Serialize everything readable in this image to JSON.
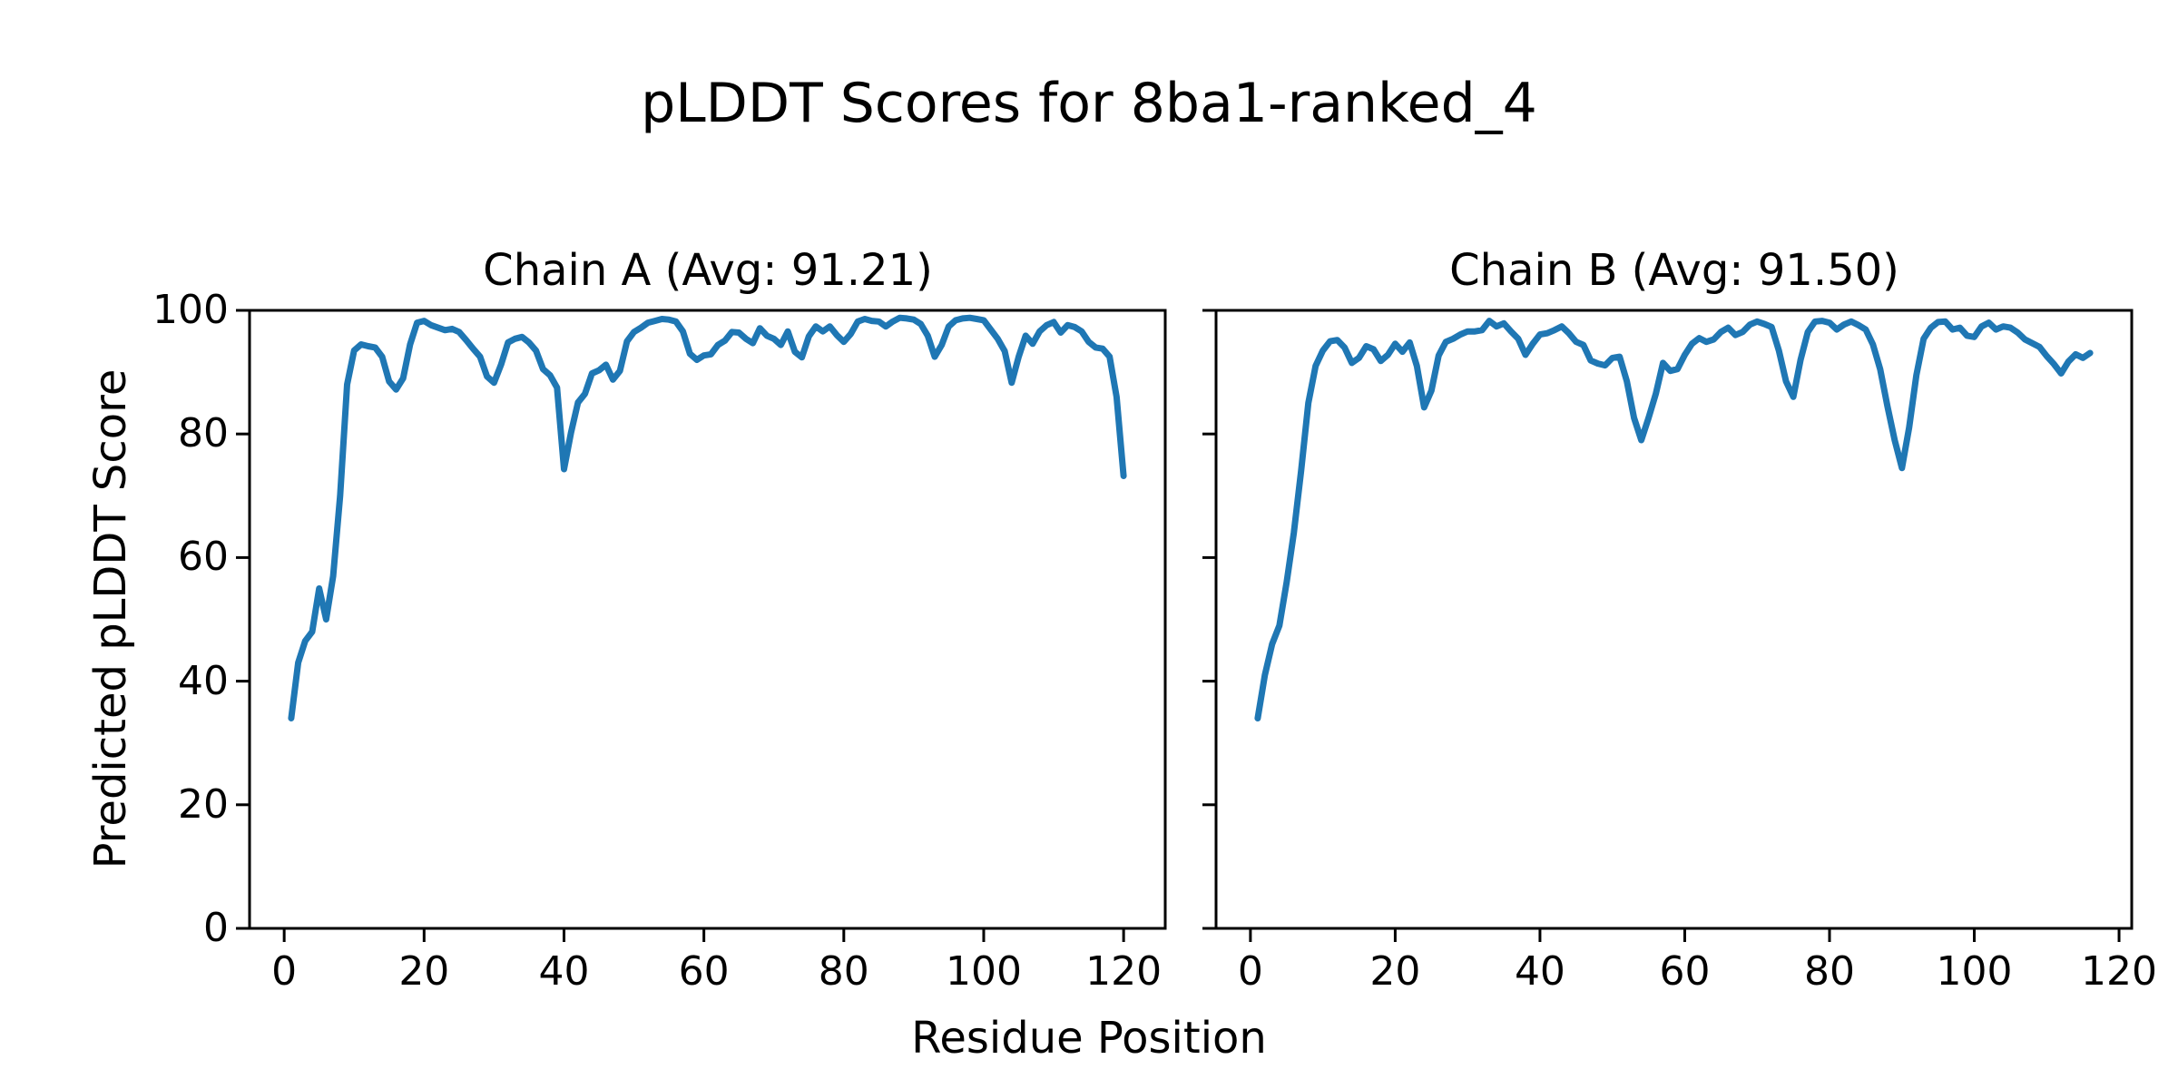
{
  "chart_data": {
    "type": "line",
    "title": "pLDDT Scores for 8ba1-ranked_4",
    "xlabel": "Residue Position",
    "ylabel": "Predicted pLDDT Score",
    "ylim": [
      0,
      100
    ],
    "yticks": [
      0,
      20,
      40,
      60,
      80,
      100
    ],
    "xticks": [
      0,
      20,
      40,
      60,
      80,
      100,
      120
    ],
    "grid": false,
    "legend_position": "none",
    "line_color": "#1f77b4",
    "axes_color": "#000000",
    "background_color": "#ffffff",
    "x_margin": 0.05,
    "x_start": 1,
    "subplots": [
      {
        "name": "chain-a",
        "title": "Chain A (Avg: 91.21)",
        "avg": 91.21,
        "residues": 120,
        "values": [
          34,
          43,
          46.5,
          48,
          55,
          50,
          57,
          70,
          88,
          93.5,
          94.5,
          94.2,
          94,
          92.5,
          88.5,
          87.2,
          89,
          94.5,
          98,
          98.3,
          97.6,
          97.2,
          96.8,
          97,
          96.5,
          95.2,
          93.8,
          92.5,
          89.3,
          88.3,
          91.2,
          94.8,
          95.4,
          95.7,
          94.8,
          93.5,
          90.5,
          89.5,
          87.5,
          74.3,
          80.2,
          85.1,
          86.5,
          89.8,
          90.3,
          91.2,
          88.8,
          90.2,
          95,
          96.5,
          97.2,
          98,
          98.3,
          98.6,
          98.5,
          98.2,
          96.6,
          93,
          92,
          92.7,
          92.9,
          94.4,
          95.1,
          96.5,
          96.4,
          95.4,
          94.7,
          97.1,
          95.9,
          95.4,
          94.4,
          96.6,
          93.3,
          92.4,
          95.8,
          97.4,
          96.6,
          97.4,
          96,
          94.9,
          96.2,
          98.2,
          98.6,
          98.3,
          98.2,
          97.4,
          98.2,
          98.8,
          98.7,
          98.5,
          97.8,
          95.9,
          92.5,
          94.4,
          97.4,
          98.4,
          98.7,
          98.8,
          98.6,
          98.4,
          96.9,
          95.4,
          93.4,
          88.3,
          92.5,
          95.9,
          94.6,
          96.6,
          97.6,
          98.1,
          96.4,
          97.6,
          97.3,
          96.6,
          94.9,
          94,
          93.8,
          92.5,
          86,
          73.2
        ]
      },
      {
        "name": "chain-b",
        "title": "Chain B (Avg: 91.50)",
        "avg": 91.5,
        "residues": 116,
        "values": [
          34,
          41,
          46,
          49,
          56,
          64,
          74,
          85,
          91,
          93.5,
          95,
          95.2,
          94,
          91.5,
          92.3,
          94.2,
          93.7,
          91.8,
          92.8,
          94.6,
          93.3,
          94.8,
          91,
          84.3,
          87,
          92.7,
          94.9,
          95.4,
          96.1,
          96.6,
          96.6,
          96.8,
          98.3,
          97.4,
          97.9,
          96.6,
          95.4,
          92.8,
          94.6,
          96.1,
          96.3,
          96.8,
          97.4,
          96.3,
          94.9,
          94.4,
          91.9,
          91.4,
          91.1,
          92.3,
          92.5,
          88.5,
          82.6,
          79,
          82.6,
          86.5,
          91.5,
          90.2,
          90.5,
          92.8,
          94.6,
          95.5,
          94.9,
          95.3,
          96.5,
          97.2,
          96,
          96.5,
          97.7,
          98.2,
          97.8,
          97.3,
          93.5,
          88.5,
          86,
          92,
          96.5,
          98.2,
          98.3,
          98,
          96.9,
          97.7,
          98.2,
          97.6,
          96.9,
          94.5,
          90.5,
          84.5,
          79,
          74.5,
          81,
          89.5,
          95.4,
          97.2,
          98.1,
          98.2,
          96.9,
          97.2,
          95.9,
          95.7,
          97.4,
          98,
          96.9,
          97.4,
          97.2,
          96.4,
          95.3,
          94.7,
          94.1,
          92.6,
          91.3,
          89.8,
          91.7,
          92.9,
          92.3,
          93.1
        ]
      }
    ]
  }
}
